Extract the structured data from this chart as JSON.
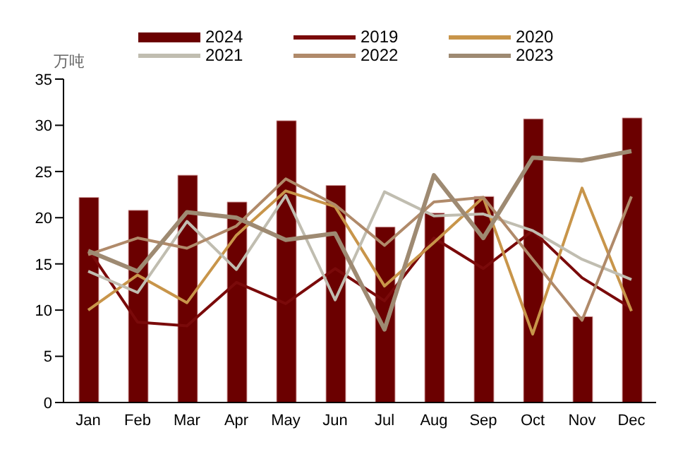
{
  "chart_data": {
    "type": "bar",
    "ylabel": "万吨",
    "categories": [
      "Jan",
      "Feb",
      "Mar",
      "Apr",
      "May",
      "Jun",
      "Jul",
      "Aug",
      "Sep",
      "Oct",
      "Nov",
      "Dec"
    ],
    "series": [
      {
        "name": "2024",
        "color": "#6b0000",
        "values": [
          22.2,
          20.8,
          24.6,
          21.7,
          30.5,
          23.5,
          19.0,
          20.5,
          22.3,
          30.7,
          9.3,
          30.8
        ]
      },
      {
        "name": "2019",
        "type": "line",
        "color": "#7a0a0a",
        "values": [
          16.6,
          8.7,
          8.3,
          13.0,
          10.7,
          14.5,
          11.0,
          17.8,
          14.5,
          18.6,
          13.5,
          10.2
        ]
      },
      {
        "name": "2020",
        "type": "line",
        "color": "#c8954a",
        "values": [
          10.0,
          13.8,
          10.8,
          18.1,
          22.9,
          21.2,
          12.6,
          17.3,
          22.2,
          7.4,
          23.2,
          9.9
        ]
      },
      {
        "name": "2021",
        "type": "line",
        "color": "#c0bdb0",
        "values": [
          14.2,
          11.9,
          19.6,
          14.4,
          22.4,
          11.1,
          22.8,
          20.2,
          20.4,
          18.6,
          15.5,
          13.3
        ]
      },
      {
        "name": "2022",
        "type": "line",
        "color": "#b08a6a",
        "values": [
          16.0,
          17.8,
          16.7,
          19.1,
          24.2,
          21.4,
          17.0,
          21.7,
          22.2,
          15.5,
          8.9,
          22.3
        ]
      },
      {
        "name": "2023",
        "type": "line",
        "color": "#9e8a72",
        "values": [
          16.4,
          14.2,
          20.6,
          20.0,
          17.6,
          18.3,
          7.9,
          24.6,
          17.8,
          26.5,
          26.2,
          27.2
        ]
      }
    ],
    "ylim": [
      0,
      35
    ],
    "yticks": [
      0,
      5,
      10,
      15,
      20,
      25,
      30,
      35
    ],
    "grid": false,
    "legend": "top"
  }
}
